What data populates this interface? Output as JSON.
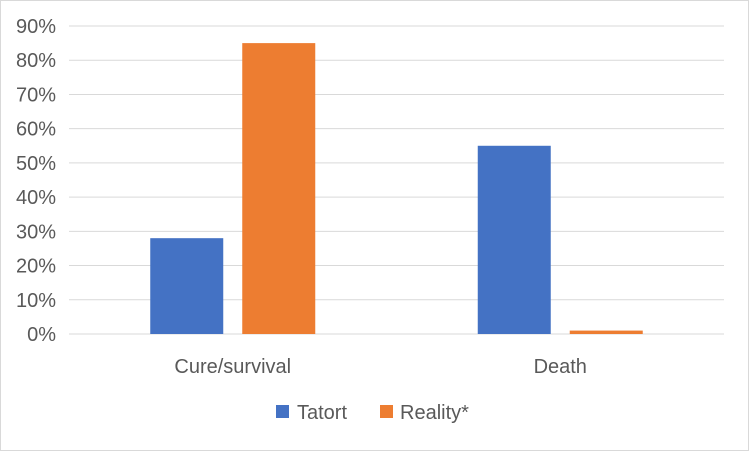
{
  "chart_data": {
    "type": "bar",
    "categories": [
      "Cure/survival",
      "Death"
    ],
    "series": [
      {
        "name": "Tatort",
        "values": [
          28,
          55
        ],
        "color": "#4472C4"
      },
      {
        "name": "Reality*",
        "values": [
          85,
          1
        ],
        "color": "#ED7D31"
      }
    ],
    "ylim": [
      0,
      90
    ],
    "yticks": [
      0,
      10,
      20,
      30,
      40,
      50,
      60,
      70,
      80,
      90
    ],
    "ytick_labels": [
      "0%",
      "10%",
      "20%",
      "30%",
      "40%",
      "50%",
      "60%",
      "70%",
      "80%",
      "90%"
    ],
    "grid": true,
    "legend_position": "bottom"
  }
}
